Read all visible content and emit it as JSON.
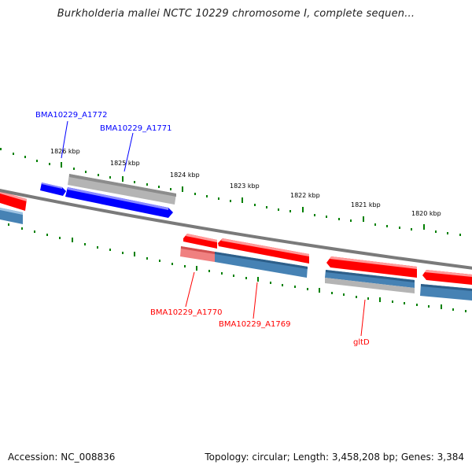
{
  "header": {
    "title": "Burkholderia mallei NCTC 10229 chromosome I, complete sequen..."
  },
  "footer": {
    "accession": "Accession: NC_008836",
    "summary": "Topology: circular; Length: 3,458,208 bp; Genes: 3,384"
  },
  "kbp_labels": [
    "1826 kbp",
    "1825 kbp",
    "1824 kbp",
    "1823 kbp",
    "1822 kbp",
    "1821 kbp",
    "1820 kbp"
  ],
  "gene_labels": {
    "a1772": "BMA10229_A1772",
    "a1771": "BMA10229_A1771",
    "a1770": "BMA10229_A1770",
    "a1769": "BMA10229_A1769",
    "gltD": "gltD"
  },
  "colors": {
    "forward_strand": "#0000ff",
    "reverse_strand": "#ff0000",
    "cds_blue": "#4682b4",
    "cds_gray": "#b4b4b4",
    "backbone": "#808080",
    "tick": "#008000"
  }
}
